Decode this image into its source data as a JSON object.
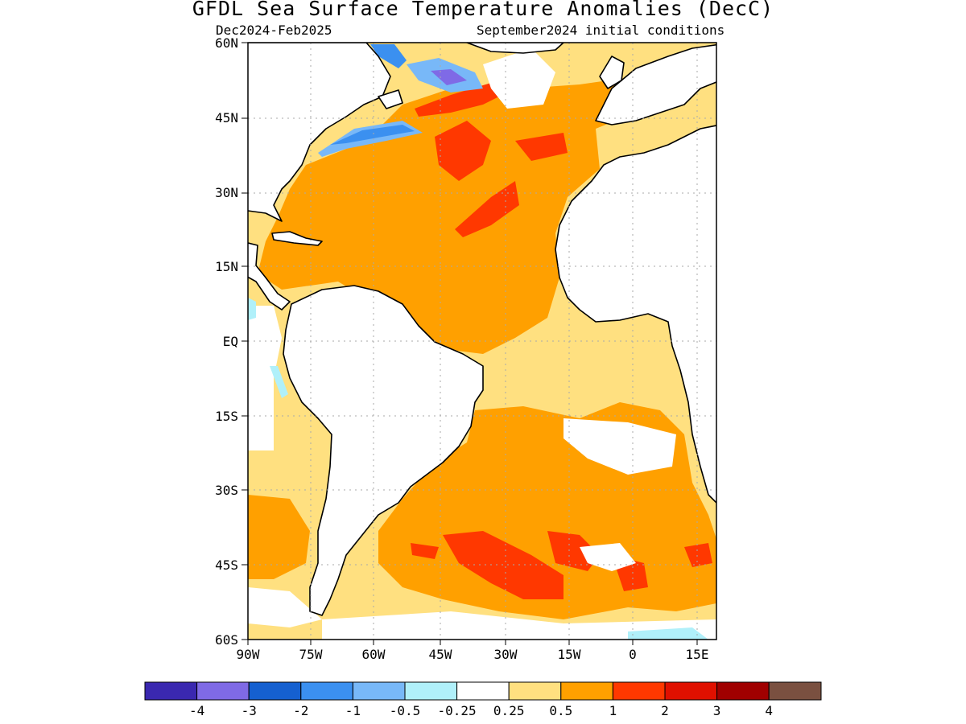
{
  "header": {
    "title": "GFDL Sea Surface Temperature Anomalies (DecC)",
    "period": "Dec2024-Feb2025",
    "initial_conditions": "September2024 initial conditions"
  },
  "axes": {
    "lat_ticks": [
      "60N",
      "45N",
      "30N",
      "15N",
      "EQ",
      "15S",
      "30S",
      "45S",
      "60S"
    ],
    "lon_ticks": [
      "90W",
      "75W",
      "60W",
      "45W",
      "30W",
      "15W",
      "0",
      "15E"
    ]
  },
  "colorbar": {
    "colors": [
      "#3a28b0",
      "#7f6ae6",
      "#1560d0",
      "#3b90f0",
      "#78b8f8",
      "#b0f0fa",
      "#ffffff",
      "#ffe080",
      "#ffa000",
      "#ff3800",
      "#e01000",
      "#a00000",
      "#7a5040"
    ],
    "labels": [
      "-4",
      "-3",
      "-2",
      "-1",
      "-0.5",
      "-0.25",
      "0.25",
      "0.5",
      "1",
      "2",
      "3",
      "4"
    ]
  },
  "colors": {
    "land": "#ffffff",
    "coastline": "#000000",
    "grid": "#aaaaaa"
  }
}
